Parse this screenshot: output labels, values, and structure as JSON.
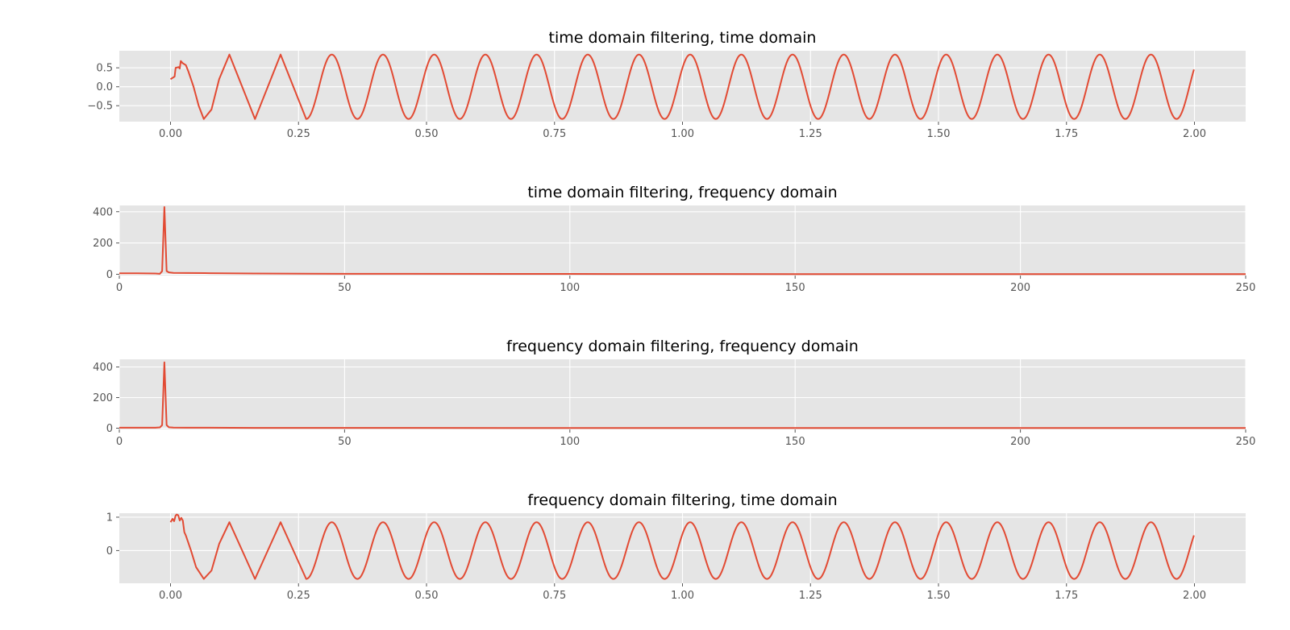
{
  "figure": {
    "background": "#ffffff",
    "axes_background": "#e5e5e5",
    "grid_color": "#ffffff",
    "line_color": "#e24a33",
    "tick_label_color": "#555555"
  },
  "chart_data": [
    {
      "type": "line",
      "title": "time domain filtering, time domain",
      "xlabel": "",
      "ylabel": "",
      "grid": true,
      "xlim": [
        -0.1,
        2.1
      ],
      "ylim": [
        -0.92,
        0.95
      ],
      "xticks": [
        0.0,
        0.25,
        0.5,
        0.75,
        1.0,
        1.25,
        1.5,
        1.75,
        2.0
      ],
      "xtick_labels": [
        "0.00",
        "0.25",
        "0.50",
        "0.75",
        "1.00",
        "1.25",
        "1.50",
        "1.75",
        "2.00"
      ],
      "yticks": [
        -0.5,
        0.0,
        0.5
      ],
      "ytick_labels": [
        "−0.5",
        "0.0",
        "0.5"
      ],
      "series": [
        {
          "x": [
            0.0,
            0.008,
            0.01,
            0.016,
            0.018,
            0.02,
            0.024,
            0.03,
            0.035,
            0.045,
            0.055,
            0.065,
            0.08,
            0.095,
            0.115,
            0.14,
            0.165,
            0.19,
            0.215,
            0.24,
            0.265
          ],
          "y": [
            0.2,
            0.27,
            0.5,
            0.52,
            0.48,
            0.68,
            0.62,
            0.57,
            0.4,
            0.0,
            -0.5,
            -0.85,
            -0.6,
            0.2,
            0.85,
            0.0,
            -0.85,
            0.0,
            0.85,
            0.0,
            -0.85
          ]
        }
      ],
      "sine_continuation": {
        "from_x": 0.265,
        "to_x": 2.0,
        "amplitude": 0.85,
        "frequency_hz": 10,
        "phase_peak_x": 0.115
      }
    },
    {
      "type": "line",
      "title": "time domain filtering, frequency domain",
      "xlabel": "",
      "ylabel": "",
      "grid": true,
      "xlim": [
        0,
        250
      ],
      "ylim": [
        -8,
        440
      ],
      "xticks": [
        0,
        50,
        100,
        150,
        200,
        250
      ],
      "xtick_labels": [
        "0",
        "50",
        "100",
        "150",
        "200",
        "250"
      ],
      "yticks": [
        0,
        200,
        400
      ],
      "ytick_labels": [
        "0",
        "200",
        "400"
      ],
      "series": [
        {
          "x": [
            0,
            4,
            8,
            9,
            9.5,
            10,
            10.5,
            11,
            12,
            15,
            20,
            30,
            50,
            100,
            150,
            200,
            250
          ],
          "y": [
            6,
            6,
            5,
            3,
            20,
            430,
            20,
            12,
            9,
            8,
            7,
            5,
            3,
            2,
            1,
            1,
            1
          ]
        }
      ]
    },
    {
      "type": "line",
      "title": "frequency domain filtering, frequency domain",
      "xlabel": "",
      "ylabel": "",
      "grid": true,
      "xlim": [
        0,
        250
      ],
      "ylim": [
        -8,
        450
      ],
      "xticks": [
        0,
        50,
        100,
        150,
        200,
        250
      ],
      "xtick_labels": [
        "0",
        "50",
        "100",
        "150",
        "200",
        "250"
      ],
      "yticks": [
        0,
        200,
        400
      ],
      "ytick_labels": [
        "0",
        "200",
        "400"
      ],
      "series": [
        {
          "x": [
            0,
            4,
            8,
            9,
            9.5,
            10,
            10.5,
            11,
            12,
            15,
            20,
            30,
            50,
            100,
            150,
            200,
            250
          ],
          "y": [
            3,
            3,
            3,
            5,
            20,
            430,
            20,
            6,
            4,
            3,
            3,
            2,
            2,
            1,
            1,
            1,
            1
          ]
        }
      ]
    },
    {
      "type": "line",
      "title": "frequency domain filtering, time domain",
      "xlabel": "",
      "ylabel": "",
      "grid": true,
      "xlim": [
        -0.1,
        2.1
      ],
      "ylim": [
        -0.98,
        1.12
      ],
      "xticks": [
        0.0,
        0.25,
        0.5,
        0.75,
        1.0,
        1.25,
        1.5,
        1.75,
        2.0
      ],
      "xtick_labels": [
        "0.00",
        "0.25",
        "0.50",
        "0.75",
        "1.00",
        "1.25",
        "1.50",
        "1.75",
        "2.00"
      ],
      "yticks": [
        0,
        1
      ],
      "ytick_labels": [
        "0",
        "1"
      ],
      "series": [
        {
          "x": [
            0.0,
            0.004,
            0.007,
            0.01,
            0.012,
            0.015,
            0.018,
            0.021,
            0.024,
            0.027,
            0.03,
            0.04,
            0.05,
            0.065,
            0.08,
            0.095,
            0.115,
            0.14,
            0.165,
            0.19,
            0.215,
            0.24,
            0.265
          ],
          "y": [
            0.85,
            0.95,
            0.88,
            1.05,
            1.08,
            1.06,
            0.9,
            0.98,
            0.9,
            0.55,
            0.45,
            0.0,
            -0.5,
            -0.85,
            -0.6,
            0.2,
            0.85,
            0.0,
            -0.85,
            0.0,
            0.85,
            0.0,
            -0.85
          ]
        }
      ],
      "sine_continuation": {
        "from_x": 0.265,
        "to_x": 2.0,
        "amplitude": 0.85,
        "frequency_hz": 10,
        "phase_peak_x": 0.115
      }
    }
  ]
}
